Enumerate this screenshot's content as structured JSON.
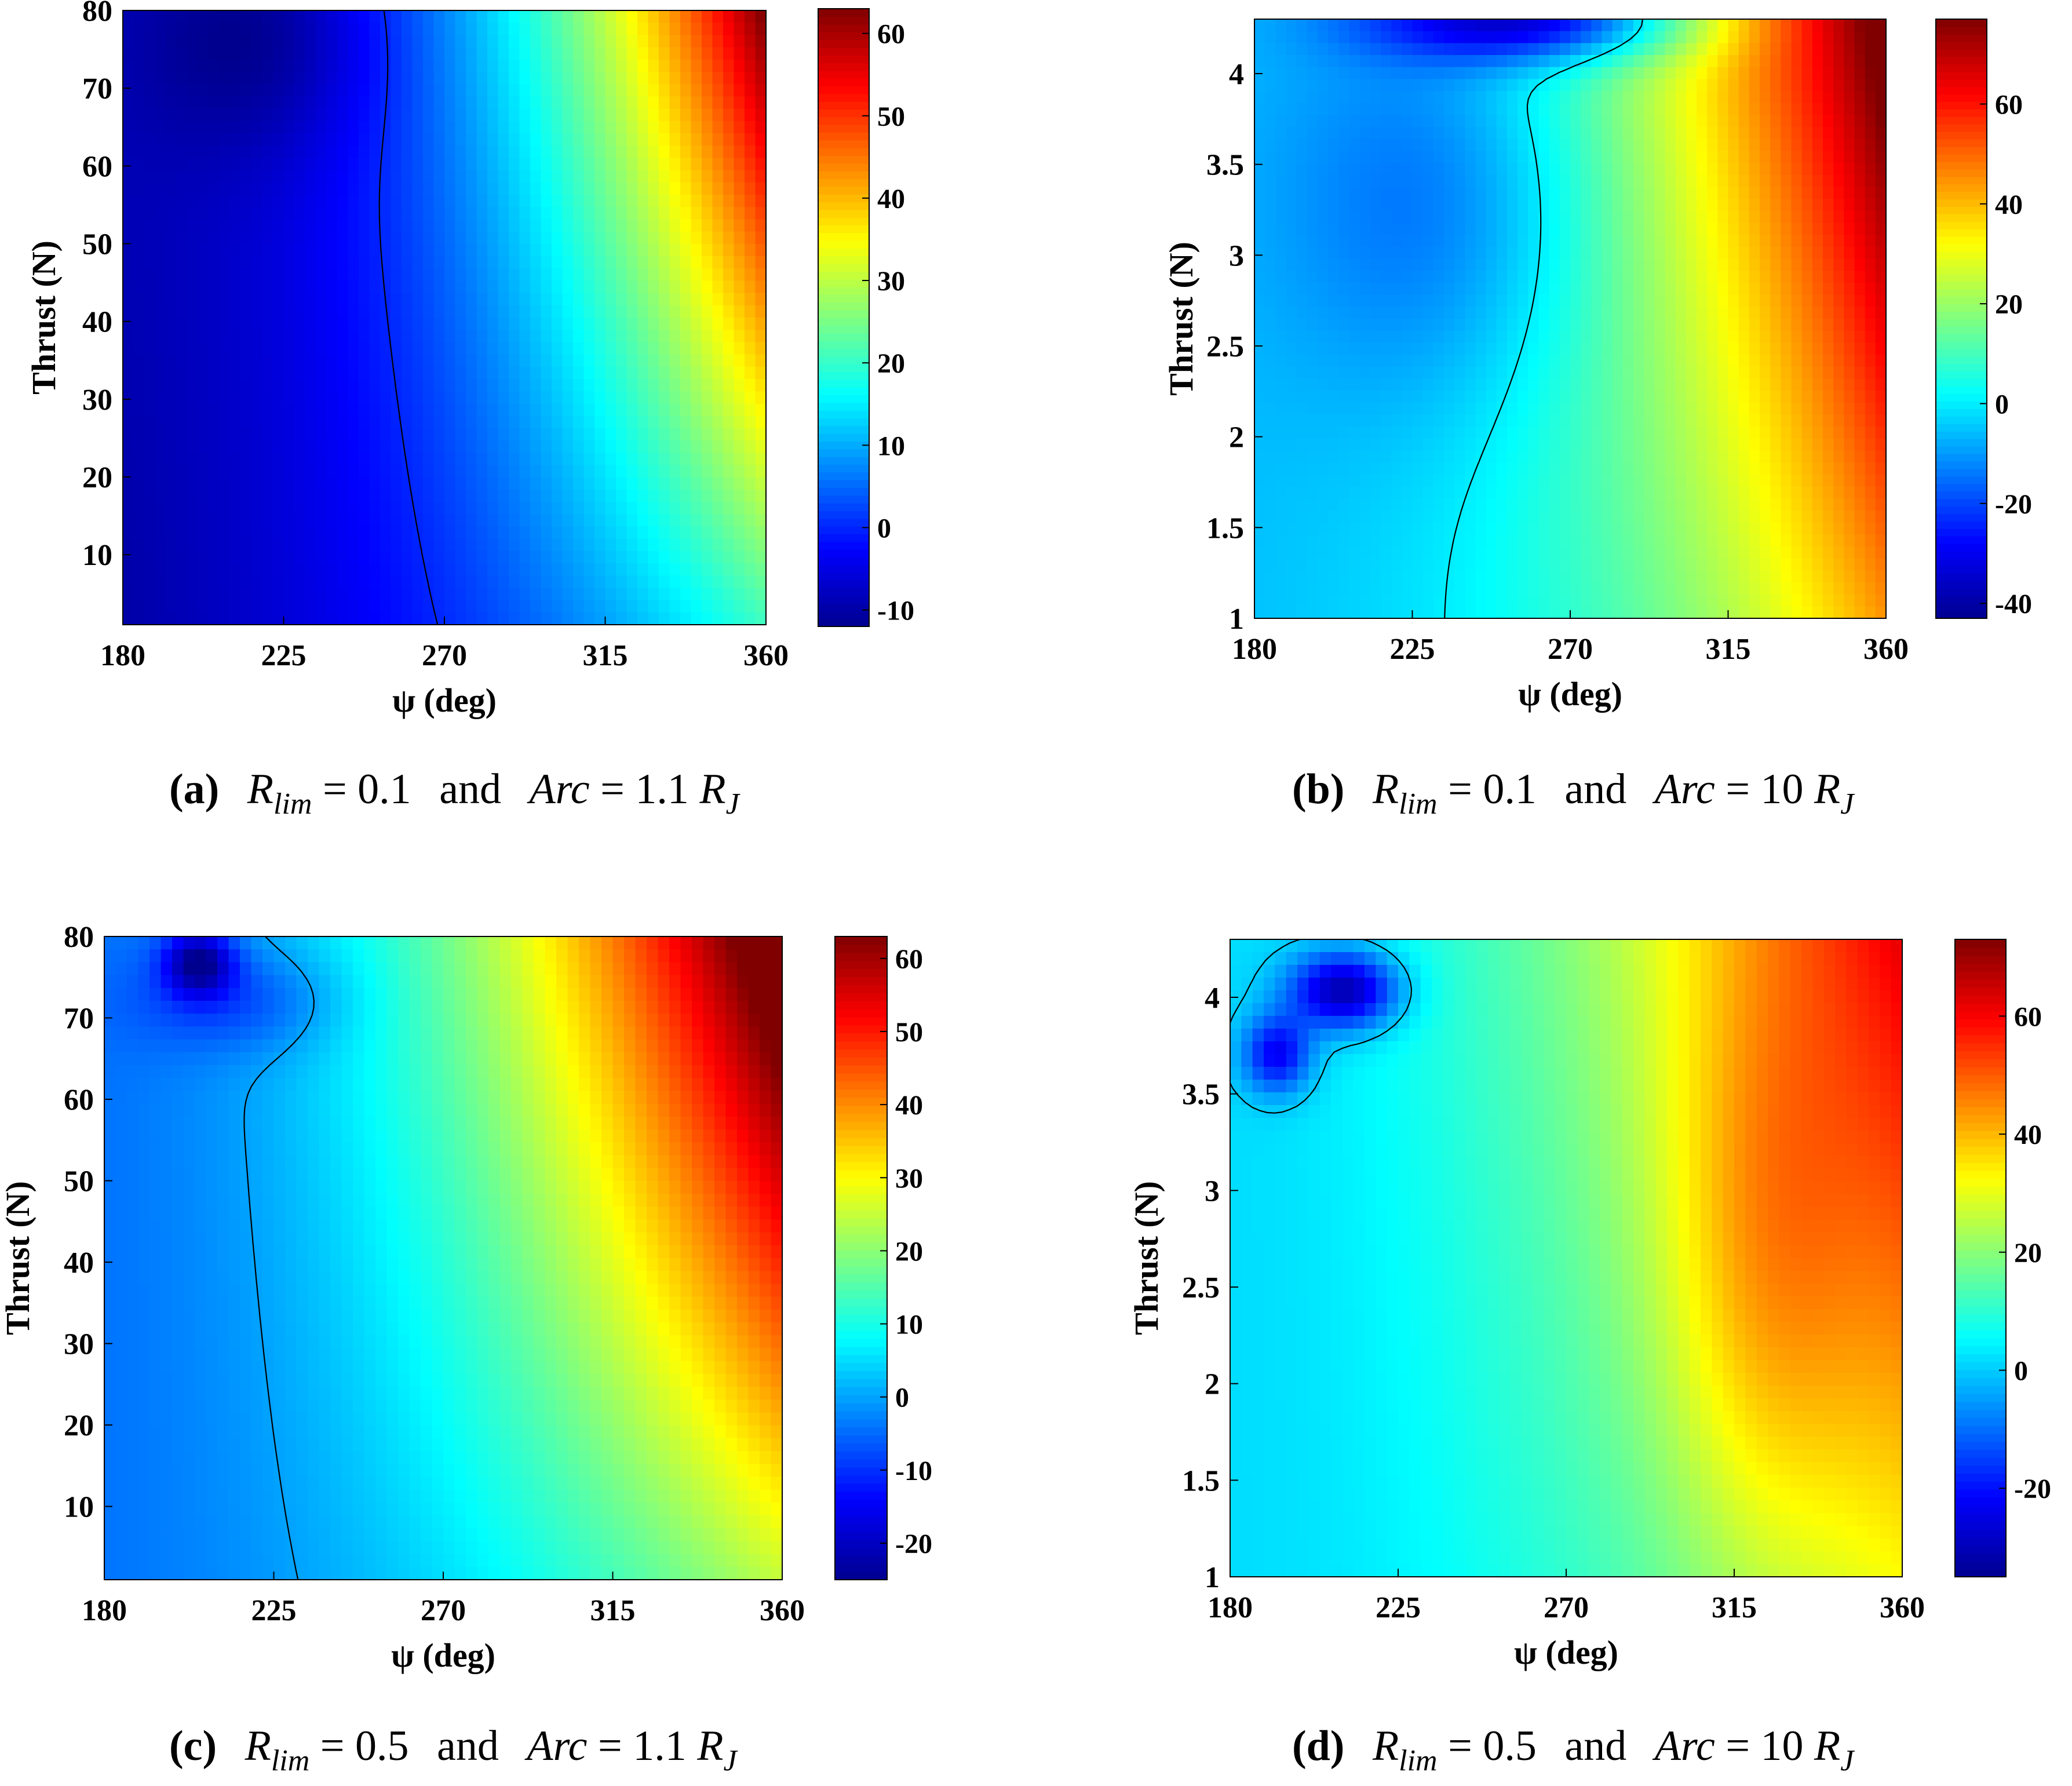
{
  "colormap": [
    "#00008f",
    "#0000ff",
    "#0080ff",
    "#00ffff",
    "#80ff80",
    "#ffff00",
    "#ff8000",
    "#ff0000",
    "#800000"
  ],
  "contour_color": "#000000",
  "chart_data": [
    {
      "id": "a",
      "type": "heatmap",
      "xlabel": "ψ (deg)",
      "ylabel": "Thrust (N)",
      "xlim": [
        180,
        360
      ],
      "ylim": [
        1,
        80
      ],
      "x_ticks": [
        "180",
        "225",
        "270",
        "315",
        "360"
      ],
      "y_ticks": [
        "10",
        "20",
        "30",
        "40",
        "50",
        "60",
        "70",
        "80"
      ],
      "colorbar_ticks": [
        "-10",
        "0",
        "10",
        "20",
        "30",
        "40",
        "50",
        "60"
      ],
      "colorbar_range": [
        -12,
        63
      ],
      "contour_level": "0",
      "caption": {
        "tag": "(a)",
        "rlim": "R",
        "rlim_sub": "lim",
        "rlim_val": "= 0.1",
        "and": "and",
        "arc": "Arc",
        "arc_val": "= 1.1",
        "rj": "R",
        "rj_sub": "J"
      }
    },
    {
      "id": "b",
      "type": "heatmap",
      "xlabel": "ψ (deg)",
      "ylabel": "Thrust (N)",
      "xlim": [
        180,
        360
      ],
      "ylim": [
        1,
        4.3
      ],
      "x_ticks": [
        "180",
        "225",
        "270",
        "315",
        "360"
      ],
      "y_ticks": [
        "1",
        "1.5",
        "2",
        "2.5",
        "3",
        "3.5",
        "4"
      ],
      "colorbar_ticks": [
        "-40",
        "-20",
        "0",
        "20",
        "40",
        "60"
      ],
      "colorbar_range": [
        -43,
        77
      ],
      "contour_level": "0",
      "caption": {
        "tag": "(b)",
        "rlim": "R",
        "rlim_sub": "lim",
        "rlim_val": "= 0.1",
        "and": "and",
        "arc": "Arc",
        "arc_val": "= 10",
        "rj": "R",
        "rj_sub": "J"
      }
    },
    {
      "id": "c",
      "type": "heatmap",
      "xlabel": "ψ (deg)",
      "ylabel": "Thrust (N)",
      "xlim": [
        180,
        360
      ],
      "ylim": [
        1,
        80
      ],
      "x_ticks": [
        "180",
        "225",
        "270",
        "315",
        "360"
      ],
      "y_ticks": [
        "10",
        "20",
        "30",
        "40",
        "50",
        "60",
        "70",
        "80"
      ],
      "colorbar_ticks": [
        "-20",
        "-10",
        "0",
        "10",
        "20",
        "30",
        "40",
        "50",
        "60"
      ],
      "colorbar_range": [
        -25,
        63
      ],
      "contour_level": "0",
      "caption": {
        "tag": "(c)",
        "rlim": "R",
        "rlim_sub": "lim",
        "rlim_val": "= 0.5",
        "and": "and",
        "arc": "Arc",
        "arc_val": "= 1.1",
        "rj": "R",
        "rj_sub": "J"
      }
    },
    {
      "id": "d",
      "type": "heatmap",
      "xlabel": "ψ (deg)",
      "ylabel": "Thrust (N)",
      "xlim": [
        180,
        360
      ],
      "ylim": [
        1,
        4.3
      ],
      "x_ticks": [
        "180",
        "225",
        "270",
        "315",
        "360"
      ],
      "y_ticks": [
        "1",
        "1.5",
        "2",
        "2.5",
        "3",
        "3.5",
        "4"
      ],
      "colorbar_ticks": [
        "-20",
        "0",
        "20",
        "40",
        "60"
      ],
      "colorbar_range": [
        -35,
        73
      ],
      "contour_level": "0",
      "caption": {
        "tag": "(d)",
        "rlim": "R",
        "rlim_sub": "lim",
        "rlim_val": "= 0.5",
        "and": "and",
        "arc": "Arc",
        "arc_val": "= 10",
        "rj": "R",
        "rj_sub": "J"
      }
    }
  ]
}
